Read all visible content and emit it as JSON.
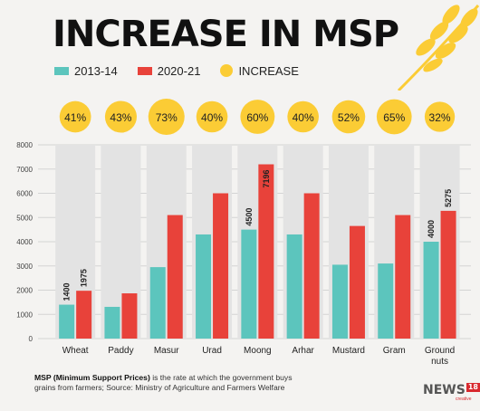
{
  "title": "INCREASE IN MSP",
  "legend": {
    "s1": "2013-14",
    "s2": "2020-21",
    "s3": "INCREASE"
  },
  "footnote": {
    "bold": "MSP (Minimum Support Prices)",
    "rest": " is the rate at which the government buys grains from farmers; Source: Ministry of Agriculture and Farmers Welfare"
  },
  "brand": {
    "name": "NEWS",
    "num": "18",
    "sub": "creative"
  },
  "colors": {
    "series1": "#5cc5bd",
    "series2": "#e8423a",
    "increase": "#fbcc35",
    "column_bg": "#e3e3e3"
  },
  "chart_data": {
    "type": "bar",
    "categories": [
      "Wheat",
      "Paddy",
      "Masur",
      "Urad",
      "Moong",
      "Arhar",
      "Mustard",
      "Gram",
      "Ground nuts"
    ],
    "series": [
      {
        "name": "2013-14",
        "values": [
          1400,
          1310,
          2950,
          4300,
          4500,
          4300,
          3050,
          3100,
          4000
        ]
      },
      {
        "name": "2020-21",
        "values": [
          1975,
          1868,
          5100,
          6000,
          7196,
          6000,
          4650,
          5100,
          5275
        ]
      }
    ],
    "data_labels": {
      "2013-14": [
        "1400",
        null,
        null,
        null,
        "4500",
        null,
        null,
        null,
        "4000"
      ],
      "2020-21": [
        "1975",
        null,
        null,
        null,
        "7196",
        null,
        null,
        null,
        "5275"
      ]
    },
    "increase": [
      "41%",
      "43%",
      "73%",
      "40%",
      "60%",
      "40%",
      "52%",
      "65%",
      "32%"
    ],
    "increase_values": [
      41,
      43,
      73,
      40,
      60,
      40,
      52,
      65,
      32
    ],
    "yticks": [
      0,
      1000,
      2000,
      3000,
      4000,
      5000,
      6000,
      7000,
      8000
    ],
    "ylim": [
      0,
      8000
    ],
    "grid": true,
    "legend": "top-left"
  }
}
